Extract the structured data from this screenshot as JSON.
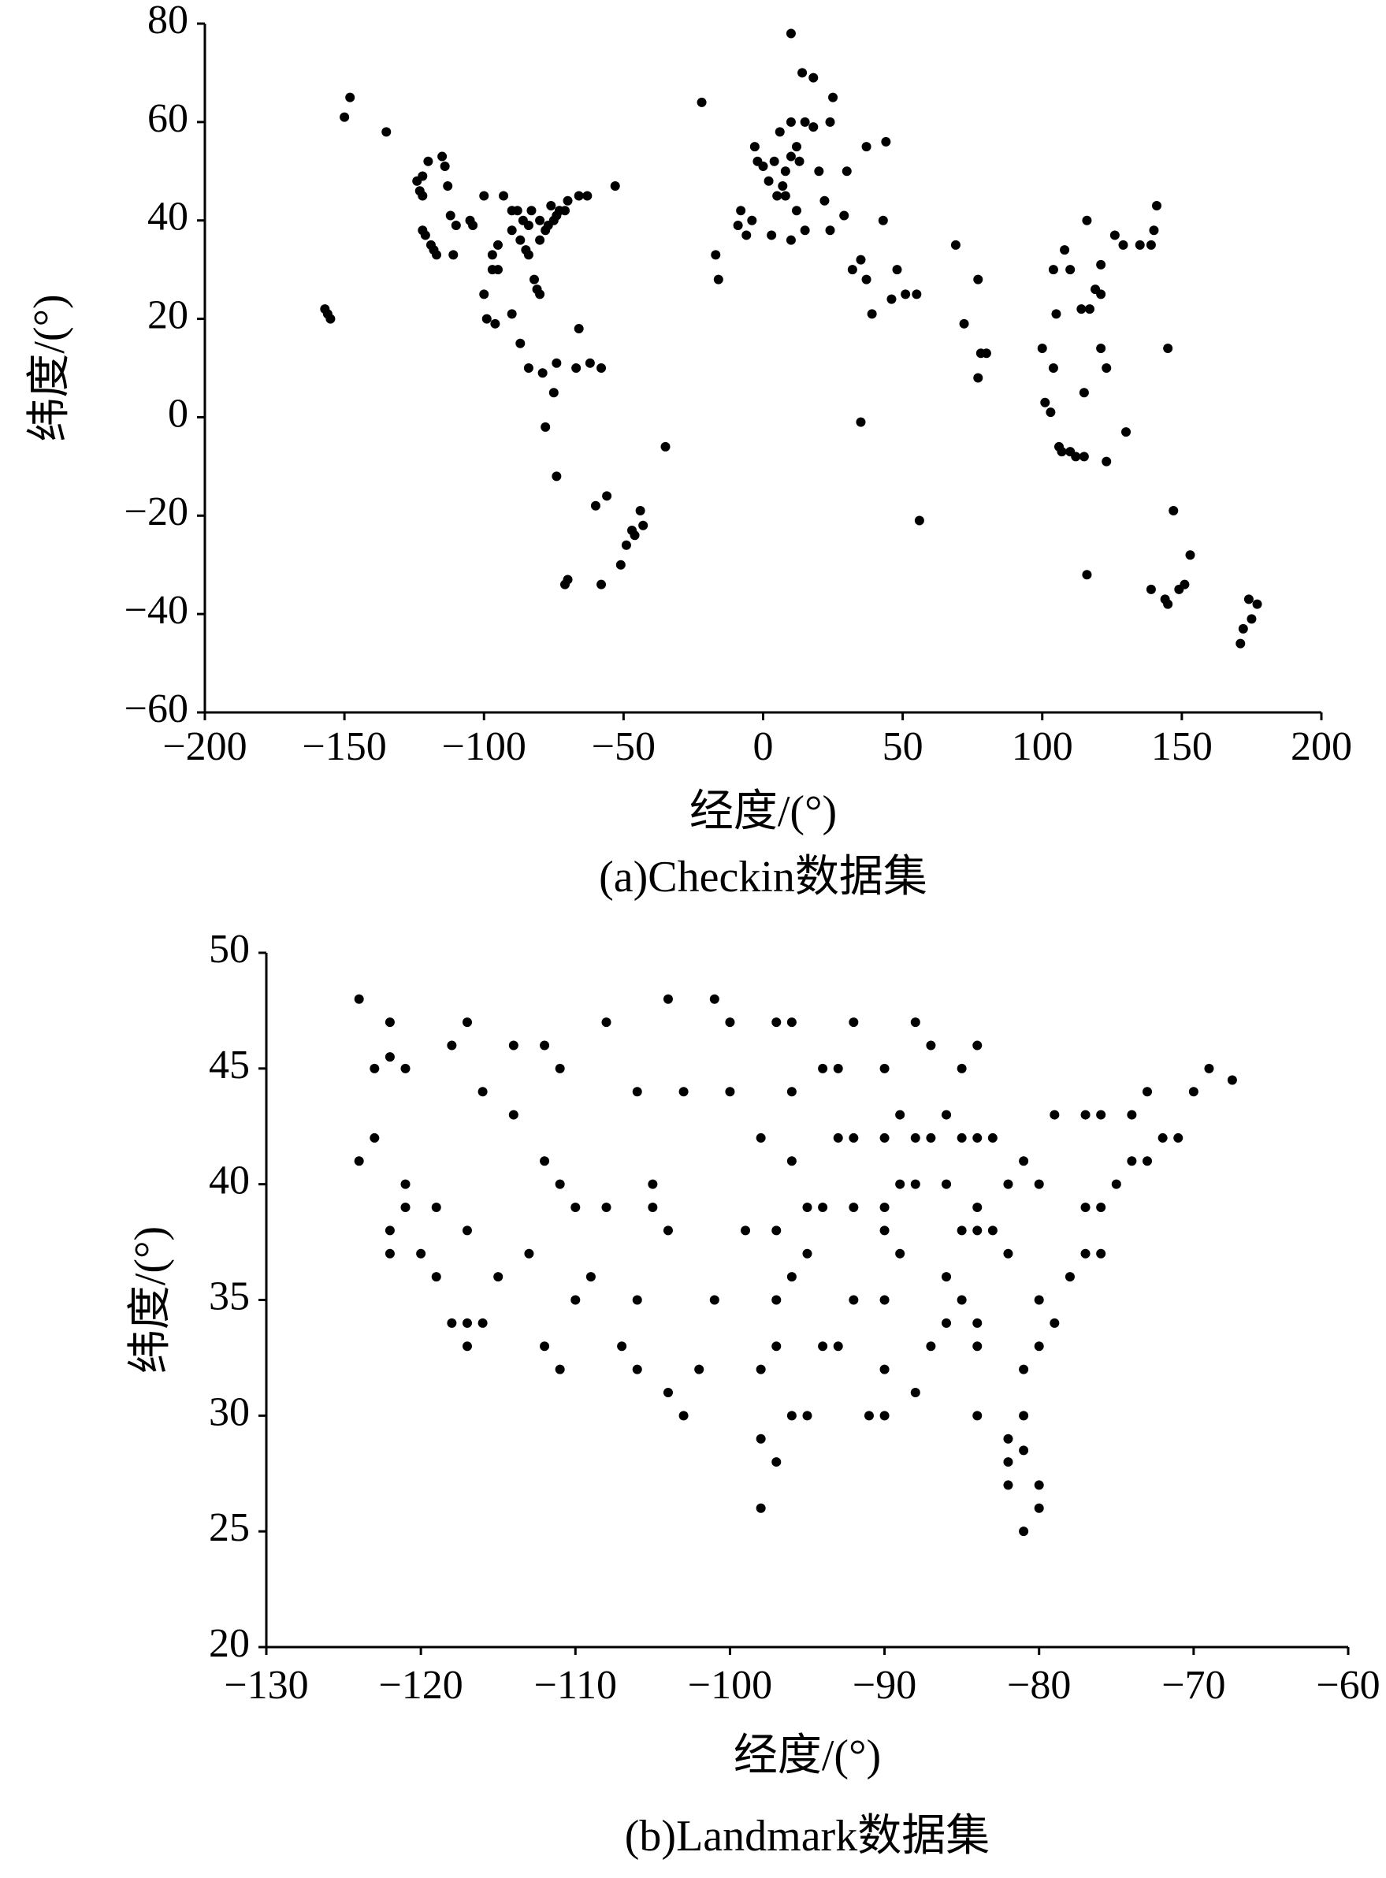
{
  "chart_data": [
    {
      "type": "scatter",
      "color": "#000000",
      "xlabel": "经度/(°)",
      "ylabel": "纬度/(°)",
      "caption": "(a)Checkin数据集",
      "xlim": [
        -200,
        200
      ],
      "ylim": [
        -60,
        80
      ],
      "xticks": [
        {
          "value": -200,
          "label": "−200"
        },
        {
          "value": -150,
          "label": "−150"
        },
        {
          "value": -100,
          "label": "−100"
        },
        {
          "value": -50,
          "label": "−50"
        },
        0,
        50,
        100,
        150,
        200
      ],
      "yticks": [
        {
          "value": -60,
          "label": "−60"
        },
        {
          "value": -40,
          "label": "−40"
        },
        {
          "value": -20,
          "label": "−20"
        },
        0,
        20,
        40,
        60,
        80
      ],
      "x": [
        -157,
        -156,
        -155,
        -150,
        -148,
        -135,
        -124,
        -123,
        -122,
        -122,
        -121,
        -119,
        -118,
        -117,
        -122,
        -120,
        -115,
        -114,
        -113,
        -112,
        -111,
        -110,
        -105,
        -104,
        -100,
        -97,
        -97,
        -95,
        -95,
        -93,
        -90,
        -90,
        -88,
        -87,
        -86,
        -85,
        -84,
        -84,
        -83,
        -82,
        -81,
        -80,
        -80,
        -78,
        -77,
        -76,
        -75,
        -74,
        -73,
        -71,
        -70,
        -66,
        -63,
        -53,
        -80,
        -99,
        -100,
        -96,
        -90,
        -87,
        -84,
        -79,
        -75,
        -74,
        -67,
        -66,
        -62,
        -58,
        -74,
        -78,
        -70,
        -71,
        -58,
        -60,
        -56,
        -47,
        -46,
        -43,
        -44,
        -49,
        -51,
        -35,
        -22,
        -16,
        -17,
        -9,
        -8,
        -4,
        -3,
        -2,
        0,
        2,
        4,
        5,
        7,
        8,
        10,
        12,
        13,
        10,
        15,
        18,
        24,
        25,
        14,
        18,
        20,
        22,
        24,
        29,
        30,
        37,
        44,
        12,
        15,
        10,
        8,
        6,
        -6,
        3,
        10,
        32,
        35,
        39,
        46,
        51,
        55,
        56,
        35,
        37,
        43,
        48,
        69,
        72,
        77,
        78,
        80,
        77,
        100,
        101,
        103,
        104,
        105,
        106,
        107,
        110,
        112,
        115,
        116,
        116,
        117,
        114,
        121,
        121,
        121,
        123,
        126,
        129,
        135,
        139,
        140,
        141,
        145,
        145,
        144,
        151,
        153,
        147,
        149,
        139,
        174,
        172,
        175,
        177,
        171,
        115,
        110,
        104,
        119,
        108,
        123,
        130
      ],
      "values": [
        22,
        21,
        20,
        61,
        65,
        58,
        48,
        46,
        45,
        38,
        37,
        35,
        34,
        33,
        49,
        52,
        53,
        51,
        47,
        41,
        33,
        39,
        40,
        39,
        45,
        33,
        30,
        30,
        35,
        45,
        42,
        38,
        42,
        36,
        40,
        34,
        39,
        33,
        42,
        28,
        26,
        36,
        40,
        38,
        39,
        43,
        40,
        41,
        42,
        42,
        44,
        45,
        45,
        47,
        25,
        20,
        25,
        19,
        21,
        15,
        10,
        9,
        5,
        11,
        10,
        18,
        11,
        10,
        -12,
        -2,
        -33,
        -34,
        -34,
        -18,
        -16,
        -23,
        -24,
        -22,
        -19,
        -26,
        -30,
        -6,
        64,
        28,
        33,
        39,
        42,
        40,
        55,
        52,
        51,
        48,
        52,
        45,
        47,
        50,
        53,
        55,
        52,
        60,
        60,
        59,
        60,
        65,
        70,
        69,
        50,
        44,
        38,
        41,
        50,
        55,
        56,
        42,
        38,
        36,
        45,
        58,
        37,
        37,
        78,
        30,
        32,
        21,
        24,
        25,
        25,
        -21,
        -1,
        28,
        40,
        30,
        35,
        19,
        28,
        13,
        13,
        8,
        14,
        3,
        1,
        10,
        21,
        -6,
        -7,
        -7,
        -8,
        -8,
        -32,
        40,
        22,
        22,
        31,
        25,
        14,
        10,
        37,
        35,
        35,
        35,
        38,
        43,
        14,
        -38,
        -37,
        -34,
        -28,
        -19,
        -35,
        -35,
        -37,
        -43,
        -41,
        -38,
        -46,
        5,
        30,
        30,
        26,
        34,
        -9,
        -3
      ]
    },
    {
      "type": "scatter",
      "color": "#000000",
      "xlabel": "经度/(°)",
      "ylabel": "纬度/(°)",
      "caption": "(b)Landmark数据集",
      "xlim": [
        -130,
        -60
      ],
      "ylim": [
        20,
        50
      ],
      "xticks": [
        {
          "value": -130,
          "label": "−130"
        },
        {
          "value": -120,
          "label": "−120"
        },
        {
          "value": -110,
          "label": "−110"
        },
        {
          "value": -100,
          "label": "−100"
        },
        {
          "value": -90,
          "label": "−90"
        },
        {
          "value": -80,
          "label": "−80"
        },
        {
          "value": -70,
          "label": "−70"
        },
        {
          "value": -60,
          "label": "−60"
        }
      ],
      "yticks": [
        20,
        25,
        30,
        35,
        40,
        45,
        50
      ],
      "x": [
        -124,
        -122,
        -123,
        -122,
        -123,
        -124,
        -122,
        -122,
        -121,
        -120,
        -119,
        -118,
        -117,
        -117,
        -121,
        -118,
        -117,
        -116,
        -114,
        -112,
        -111,
        -114,
        -112,
        -111,
        -115,
        -112,
        -111,
        -110,
        -106,
        -106,
        -105,
        -105,
        -104,
        -106,
        -108,
        -104,
        -100,
        -97,
        -96,
        -98,
        -96,
        -97,
        -95,
        -97,
        -96,
        -98,
        -97,
        -96,
        -95,
        -98,
        -97,
        -98,
        -101,
        -102,
        -103,
        -104,
        -94,
        -93,
        -92,
        -90,
        -89,
        -88,
        -87,
        -90,
        -92,
        -93,
        -94,
        -92,
        -90,
        -90,
        -89,
        -92,
        -93,
        -90,
        -90,
        -91,
        -90,
        -88,
        -87,
        -86,
        -86,
        -85,
        -84,
        -84,
        -84,
        -82,
        -82,
        -81,
        -80,
        -80,
        -81,
        -82,
        -81,
        -81,
        -80,
        -79,
        -80,
        -78,
        -77,
        -76,
        -77,
        -76,
        -75,
        -74,
        -73,
        -72,
        -71,
        -70,
        -69,
        -67.5,
        -73,
        -74,
        -76,
        -77,
        -79,
        -80,
        -81,
        -82,
        -83,
        -84,
        -85,
        -86,
        -85,
        -84,
        -83,
        -82,
        -84,
        -88,
        -89,
        -86,
        -85,
        -87,
        -84,
        -88,
        -96,
        -100,
        -103,
        -108,
        -109,
        -107,
        -110,
        -113,
        -119,
        -116,
        -117,
        -121,
        -101,
        -99,
        -95,
        -94
      ],
      "values": [
        48,
        47,
        45,
        45.5,
        42,
        41,
        38,
        37,
        39,
        37,
        36,
        34,
        33,
        34,
        45,
        46,
        47,
        44,
        46,
        46,
        45,
        43,
        41,
        40,
        36,
        33,
        32,
        35,
        35,
        32,
        39,
        40,
        38,
        44,
        47,
        48,
        47,
        47,
        44,
        42,
        41,
        38,
        39,
        35,
        36,
        32,
        33,
        30,
        30,
        29,
        28,
        26,
        35,
        32,
        30,
        31,
        45,
        45,
        47,
        45,
        43,
        42,
        42,
        42,
        42,
        42,
        39,
        39,
        39,
        38,
        37,
        35,
        33,
        35,
        32,
        30,
        30,
        31,
        33,
        34,
        36,
        35,
        34,
        33,
        30,
        29,
        28,
        28.5,
        27,
        26,
        25,
        27,
        30,
        32,
        33,
        34,
        35,
        36,
        37,
        37,
        39,
        39,
        40,
        41,
        41,
        42,
        42,
        44,
        45,
        44.5,
        44,
        43,
        43,
        43,
        43,
        40,
        41,
        40,
        42,
        42,
        42,
        40,
        38,
        38,
        38,
        37,
        39,
        40,
        40,
        43,
        45,
        46,
        46,
        47,
        47,
        44,
        44,
        39,
        36,
        33,
        39,
        37,
        39,
        34,
        38,
        40,
        48,
        38,
        37,
        33
      ]
    }
  ]
}
